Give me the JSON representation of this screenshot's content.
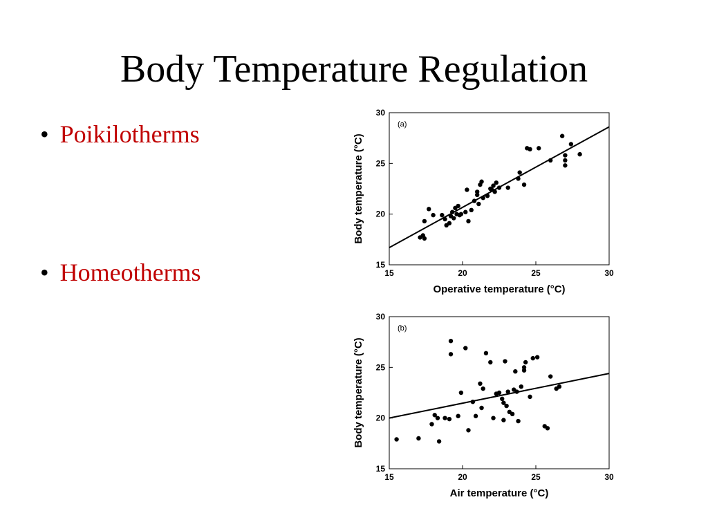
{
  "slide": {
    "title": "Body Temperature Regulation",
    "bullet_marker": "•",
    "bullets": [
      "Poikilotherms",
      "Homeotherms"
    ],
    "bullet_color": "#c00000"
  },
  "chart_data": [
    {
      "type": "scatter",
      "panel_label": "(a)",
      "xlabel": "Operative temperature (°C)",
      "ylabel": "Body temperature (°C)",
      "xlim": [
        15,
        30
      ],
      "ylim": [
        15,
        30
      ],
      "xticks": [
        15,
        20,
        25,
        30
      ],
      "yticks": [
        15,
        20,
        25,
        30
      ],
      "grid": false,
      "points": [
        [
          17.1,
          17.7
        ],
        [
          17.3,
          17.9
        ],
        [
          17.4,
          17.6
        ],
        [
          17.4,
          19.3
        ],
        [
          17.7,
          20.5
        ],
        [
          18.0,
          19.9
        ],
        [
          18.6,
          19.9
        ],
        [
          18.8,
          19.5
        ],
        [
          18.9,
          18.9
        ],
        [
          19.1,
          19.1
        ],
        [
          19.2,
          19.8
        ],
        [
          19.3,
          20.2
        ],
        [
          19.4,
          19.6
        ],
        [
          19.5,
          20.6
        ],
        [
          19.6,
          20.0
        ],
        [
          19.7,
          20.8
        ],
        [
          19.8,
          19.9
        ],
        [
          19.9,
          20.0
        ],
        [
          20.2,
          20.2
        ],
        [
          20.3,
          22.4
        ],
        [
          20.4,
          19.3
        ],
        [
          20.6,
          20.4
        ],
        [
          20.8,
          21.3
        ],
        [
          21.0,
          21.9
        ],
        [
          21.0,
          22.2
        ],
        [
          21.1,
          21.0
        ],
        [
          21.2,
          22.9
        ],
        [
          21.3,
          23.2
        ],
        [
          21.4,
          21.6
        ],
        [
          21.7,
          21.8
        ],
        [
          21.9,
          22.5
        ],
        [
          22.0,
          22.4
        ],
        [
          22.1,
          22.8
        ],
        [
          22.2,
          22.2
        ],
        [
          22.3,
          23.1
        ],
        [
          22.5,
          22.6
        ],
        [
          23.1,
          22.6
        ],
        [
          23.8,
          23.5
        ],
        [
          23.9,
          24.1
        ],
        [
          24.2,
          22.9
        ],
        [
          24.4,
          26.5
        ],
        [
          24.6,
          26.4
        ],
        [
          25.2,
          26.5
        ],
        [
          26.0,
          25.3
        ],
        [
          26.8,
          27.7
        ],
        [
          27.0,
          25.3
        ],
        [
          27.0,
          25.8
        ],
        [
          27.0,
          24.8
        ],
        [
          27.4,
          26.9
        ],
        [
          28.0,
          25.9
        ]
      ],
      "regression_line": {
        "from": [
          15,
          16.7
        ],
        "to": [
          30,
          28.6
        ]
      }
    },
    {
      "type": "scatter",
      "panel_label": "(b)",
      "xlabel": "Air temperature (°C)",
      "ylabel": "Body temperature (°C)",
      "xlim": [
        15,
        30
      ],
      "ylim": [
        15,
        30
      ],
      "xticks": [
        15,
        20,
        25,
        30
      ],
      "yticks": [
        15,
        20,
        25,
        30
      ],
      "grid": false,
      "points": [
        [
          15.5,
          17.9
        ],
        [
          17.0,
          18.0
        ],
        [
          17.9,
          19.4
        ],
        [
          18.1,
          20.3
        ],
        [
          18.3,
          20.0
        ],
        [
          18.4,
          17.7
        ],
        [
          18.8,
          20.0
        ],
        [
          19.1,
          19.9
        ],
        [
          19.2,
          27.6
        ],
        [
          19.2,
          26.3
        ],
        [
          19.7,
          20.2
        ],
        [
          19.9,
          22.5
        ],
        [
          20.2,
          26.9
        ],
        [
          20.4,
          18.8
        ],
        [
          20.9,
          20.2
        ],
        [
          20.7,
          21.6
        ],
        [
          21.3,
          21.0
        ],
        [
          21.2,
          23.4
        ],
        [
          21.4,
          22.9
        ],
        [
          21.6,
          26.4
        ],
        [
          21.9,
          25.5
        ],
        [
          22.1,
          20.0
        ],
        [
          22.3,
          22.4
        ],
        [
          22.5,
          22.5
        ],
        [
          22.7,
          21.9
        ],
        [
          22.8,
          21.5
        ],
        [
          22.8,
          19.8
        ],
        [
          22.9,
          25.6
        ],
        [
          23.0,
          21.2
        ],
        [
          23.1,
          22.6
        ],
        [
          23.2,
          20.6
        ],
        [
          23.4,
          20.4
        ],
        [
          23.5,
          22.8
        ],
        [
          23.6,
          24.6
        ],
        [
          23.7,
          22.6
        ],
        [
          23.8,
          19.7
        ],
        [
          24.0,
          23.1
        ],
        [
          24.2,
          25.0
        ],
        [
          24.3,
          25.5
        ],
        [
          24.6,
          22.1
        ],
        [
          24.8,
          25.9
        ],
        [
          25.1,
          26.0
        ],
        [
          25.6,
          19.2
        ],
        [
          25.8,
          19.0
        ],
        [
          26.0,
          24.1
        ],
        [
          26.4,
          22.9
        ],
        [
          26.6,
          23.1
        ],
        [
          24.2,
          24.7
        ]
      ],
      "regression_line": {
        "from": [
          15,
          20.0
        ],
        "to": [
          30,
          24.4
        ]
      }
    }
  ]
}
